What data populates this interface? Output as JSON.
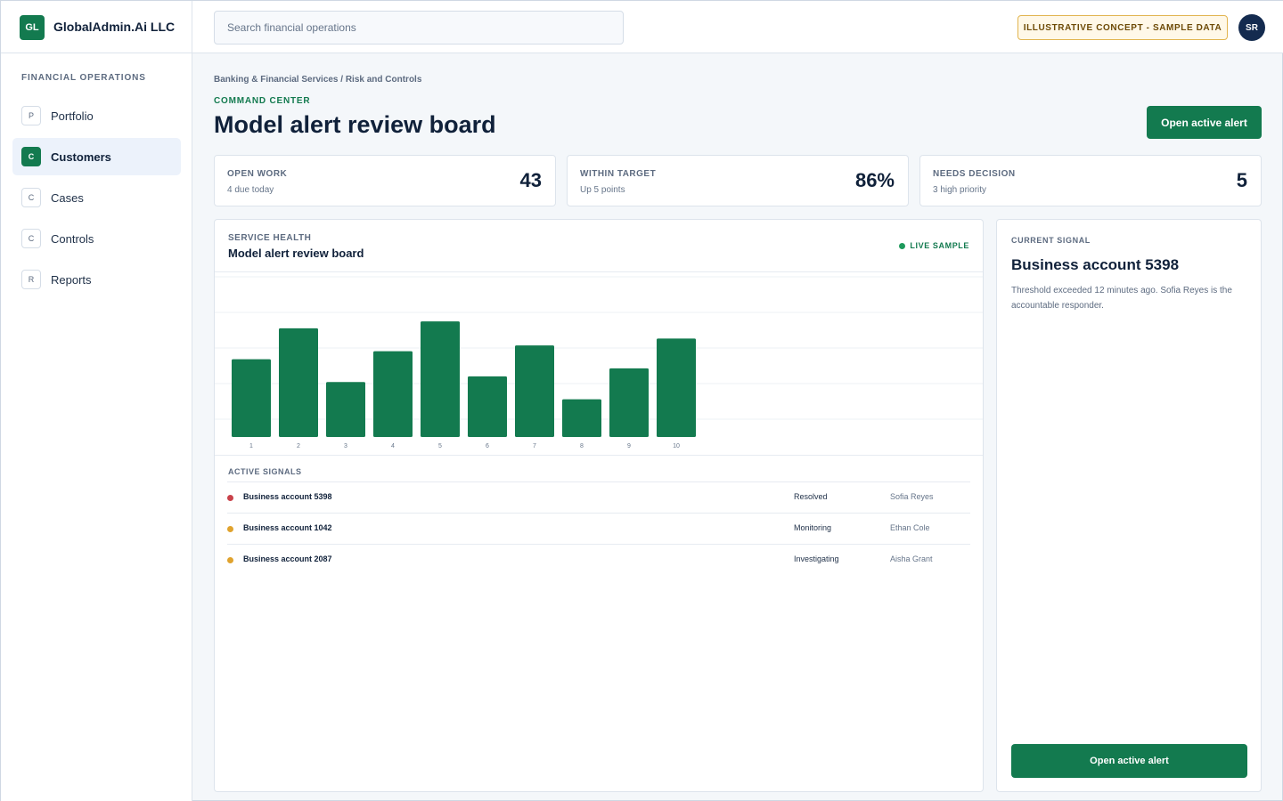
{
  "brand": {
    "logo": "GL",
    "name": "GlobalAdmin.Ai LLC"
  },
  "search": {
    "placeholder": "Search financial operations",
    "value": ""
  },
  "topbar": {
    "badge": "ILLUSTRATIVE CONCEPT - SAMPLE DATA",
    "avatar": "SR"
  },
  "sidebar": {
    "section": "FINANCIAL OPERATIONS",
    "items": [
      {
        "badge": "P",
        "label": "Portfolio",
        "active": false
      },
      {
        "badge": "C",
        "label": "Customers",
        "active": true
      },
      {
        "badge": "C",
        "label": "Cases",
        "active": false
      },
      {
        "badge": "C",
        "label": "Controls",
        "active": false
      },
      {
        "badge": "R",
        "label": "Reports",
        "active": false
      }
    ]
  },
  "header": {
    "breadcrumb": "Banking & Financial Services / Risk and Controls",
    "eyebrow": "COMMAND CENTER",
    "title": "Model alert review board",
    "action": "Open active alert"
  },
  "stats": [
    {
      "label": "OPEN WORK",
      "sub": "4 due today",
      "value": "43"
    },
    {
      "label": "WITHIN TARGET",
      "sub": "Up 5 points",
      "value": "86%"
    },
    {
      "label": "NEEDS DECISION",
      "sub": "3 high priority",
      "value": "5"
    }
  ],
  "panel": {
    "eyebrow": "SERVICE HEALTH",
    "title": "Model alert review board",
    "live": "LIVE SAMPLE"
  },
  "chart_data": {
    "type": "bar",
    "categories": [
      "1",
      "2",
      "3",
      "4",
      "5",
      "6",
      "7",
      "8",
      "9",
      "10"
    ],
    "values": [
      68,
      95,
      48,
      75,
      101,
      53,
      80,
      33,
      60,
      86
    ],
    "ylim": [
      0,
      140
    ],
    "grid": true,
    "color": "#137a4f"
  },
  "signals": {
    "title": "ACTIVE SIGNALS",
    "rows": [
      {
        "name": "Business account 5398",
        "status": "Resolved",
        "owner": "Sofia Reyes",
        "dot": "#c9424a"
      },
      {
        "name": "Business account 1042",
        "status": "Monitoring",
        "owner": "Ethan Cole",
        "dot": "#e0a32e"
      },
      {
        "name": "Business account 2087",
        "status": "Investigating",
        "owner": "Aisha Grant",
        "dot": "#e0a32e"
      }
    ]
  },
  "current_signal": {
    "eyebrow": "CURRENT SIGNAL",
    "title": "Business account 5398",
    "text": "Threshold exceeded 12 minutes ago. Sofia Reyes is the accountable responder.",
    "action": "Open active alert"
  }
}
